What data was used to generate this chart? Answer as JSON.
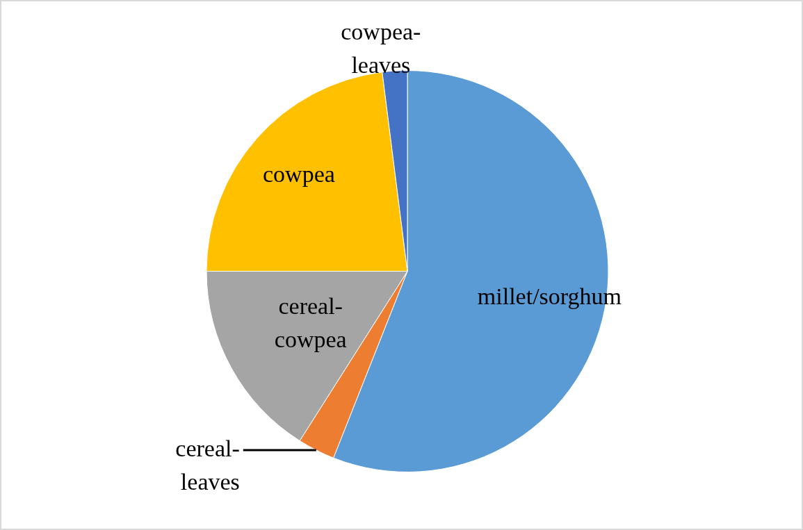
{
  "chart_data": {
    "type": "pie",
    "categories": [
      "millet/sorghum",
      "cereal-leaves",
      "cereal-cowpea",
      "cowpea",
      "cowpea-leaves"
    ],
    "values": [
      56,
      3,
      16,
      23,
      2
    ],
    "colors": [
      "#5b9bd5",
      "#ed7d31",
      "#a5a5a5",
      "#ffc000",
      "#4472c4"
    ],
    "legend": false
  }
}
